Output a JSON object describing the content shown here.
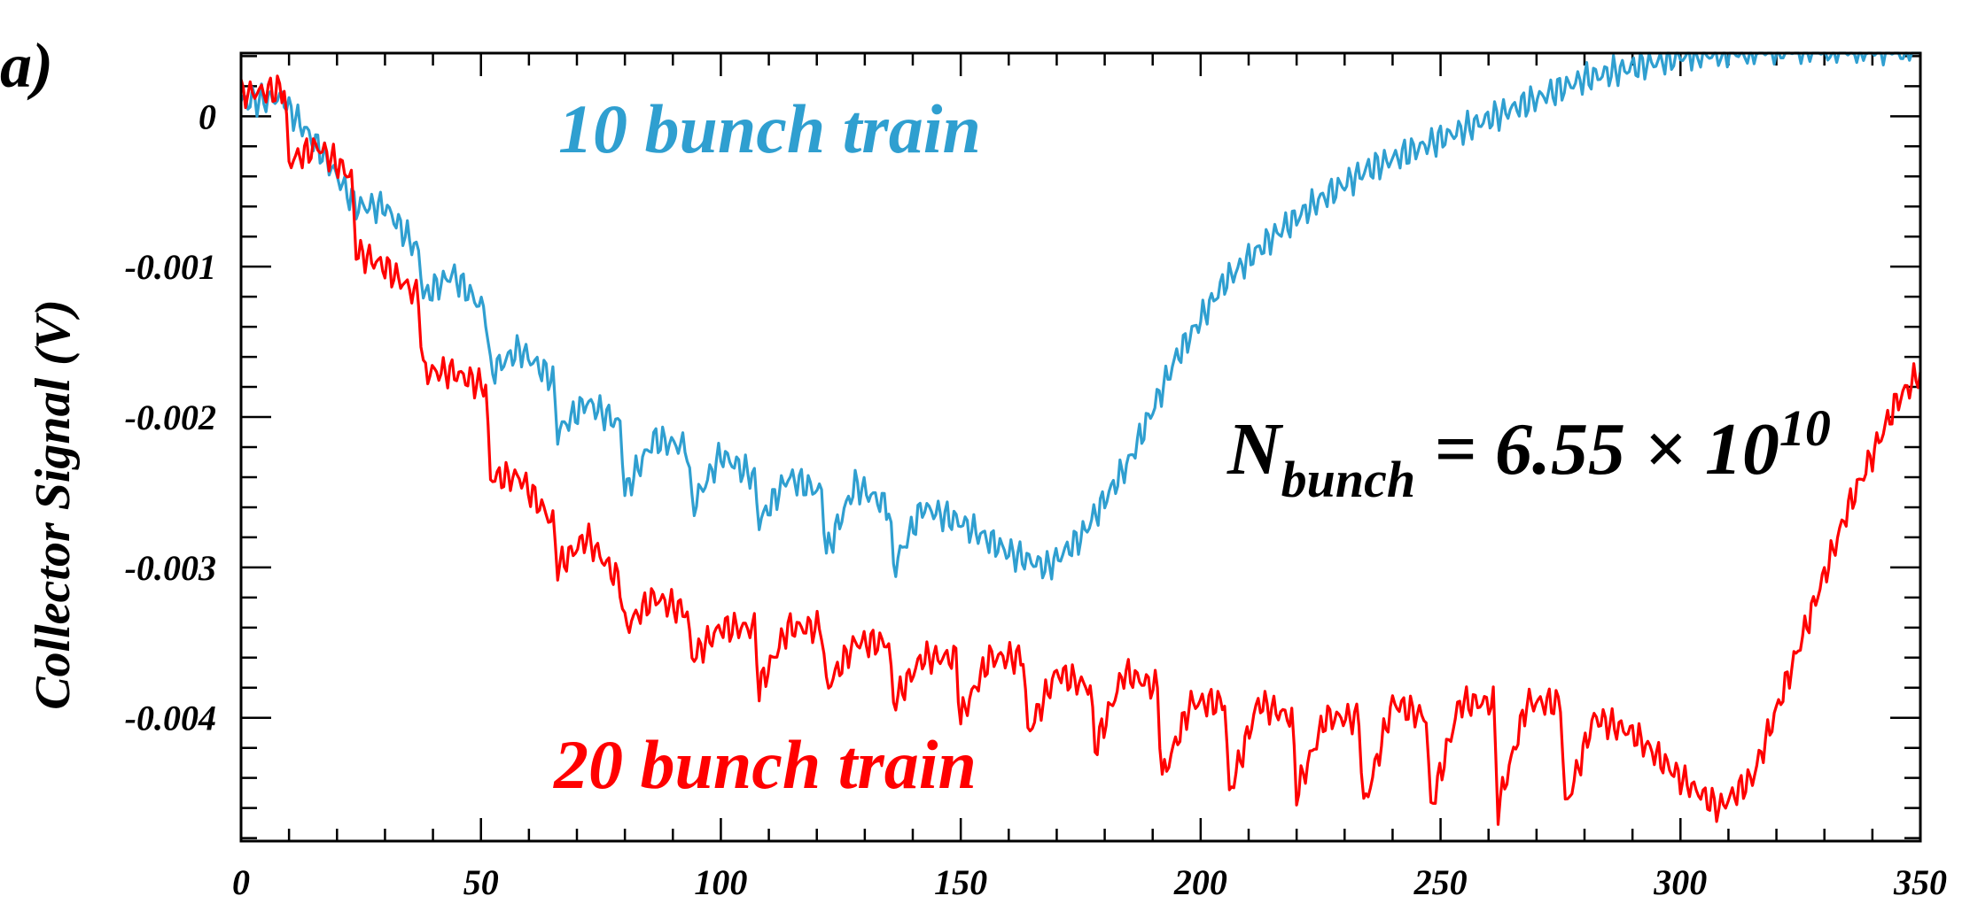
{
  "chart_data": {
    "type": "line",
    "panel_label": "a)",
    "title": "",
    "xlabel": "",
    "ylabel": "Collector Signal (V)",
    "xlim": [
      0,
      350
    ],
    "ylim": [
      -0.00482,
      0.00042
    ],
    "x_ticks": [
      0,
      50,
      100,
      150,
      200,
      250,
      300,
      350
    ],
    "x_tick_labels": [
      "0",
      "50",
      "100",
      "150",
      "200",
      "250",
      "300",
      "350"
    ],
    "y_ticks": [
      0,
      -0.001,
      -0.002,
      -0.003,
      -0.004
    ],
    "y_tick_labels": [
      "0",
      "-0.001",
      "-0.002",
      "-0.003",
      "-0.004"
    ],
    "grid": false,
    "annotation": {
      "base": "N",
      "subscript": "bunch",
      "mid": " = 6.55 × 10",
      "exponent": "10"
    },
    "series": [
      {
        "name": "10 bunch train",
        "color": "#2f9fd0",
        "x": [
          0,
          9,
          10,
          16,
          24,
          30,
          37,
          38,
          44,
          51,
          52,
          58,
          65,
          66,
          72,
          79,
          80,
          86,
          93,
          94,
          100,
          107,
          108,
          114,
          121,
          122,
          128,
          135,
          136,
          142,
          150,
          160,
          168,
          175,
          185,
          195,
          205,
          215,
          225,
          235,
          250,
          265,
          280,
          300,
          320,
          340,
          350
        ],
        "y": [
          0.0001,
          0.00012,
          5e-05,
          -0.0002,
          -0.0006,
          -0.0006,
          -0.0009,
          -0.0012,
          -0.00105,
          -0.0013,
          -0.0017,
          -0.00155,
          -0.00175,
          -0.0021,
          -0.0019,
          -0.00205,
          -0.0025,
          -0.00215,
          -0.0022,
          -0.0026,
          -0.00225,
          -0.0024,
          -0.0027,
          -0.0024,
          -0.0025,
          -0.0029,
          -0.00245,
          -0.0026,
          -0.003,
          -0.0026,
          -0.0027,
          -0.0029,
          -0.003,
          -0.0028,
          -0.0023,
          -0.0016,
          -0.0011,
          -0.0008,
          -0.00055,
          -0.00035,
          -0.00015,
          5e-05,
          0.00025,
          0.0004,
          0.00045,
          0.00045,
          0.00045
        ]
      },
      {
        "name": "20 bunch train",
        "color": "#ff0000",
        "x": [
          0,
          9,
          10,
          16,
          23,
          24,
          30,
          37,
          38,
          44,
          51,
          52,
          58,
          65,
          66,
          72,
          79,
          80,
          86,
          93,
          94,
          100,
          107,
          108,
          114,
          121,
          122,
          128,
          135,
          136,
          142,
          149,
          150,
          156,
          163,
          164,
          170,
          177,
          178,
          184,
          191,
          192,
          198,
          205,
          206,
          212,
          219,
          220,
          226,
          233,
          234,
          240,
          247,
          248,
          254,
          261,
          262,
          268,
          275,
          276,
          282,
          290,
          300,
          308,
          315,
          325,
          335,
          345,
          350
        ],
        "y": [
          0.00015,
          0.00018,
          -0.0003,
          -0.0002,
          -0.0004,
          -0.0009,
          -0.001,
          -0.0012,
          -0.0017,
          -0.0017,
          -0.0018,
          -0.0024,
          -0.0024,
          -0.0027,
          -0.003,
          -0.0028,
          -0.0031,
          -0.0034,
          -0.0032,
          -0.0033,
          -0.0036,
          -0.0034,
          -0.0034,
          -0.0038,
          -0.0034,
          -0.0034,
          -0.0038,
          -0.0035,
          -0.0035,
          -0.0039,
          -0.0036,
          -0.0036,
          -0.004,
          -0.0036,
          -0.0036,
          -0.0041,
          -0.0037,
          -0.0038,
          -0.0042,
          -0.0037,
          -0.0038,
          -0.0044,
          -0.0039,
          -0.0039,
          -0.0045,
          -0.0039,
          -0.004,
          -0.0045,
          -0.004,
          -0.004,
          -0.0046,
          -0.0039,
          -0.004,
          -0.0046,
          -0.0039,
          -0.0039,
          -0.0046,
          -0.0039,
          -0.0039,
          -0.0046,
          -0.004,
          -0.0041,
          -0.0044,
          -0.0046,
          -0.0044,
          -0.0035,
          -0.0026,
          -0.0019,
          -0.0017
        ]
      }
    ],
    "series_labels": [
      {
        "text": "10 bunch train",
        "color": "#2f9fd0"
      },
      {
        "text": "20 bunch train",
        "color": "#ff0000"
      }
    ]
  }
}
